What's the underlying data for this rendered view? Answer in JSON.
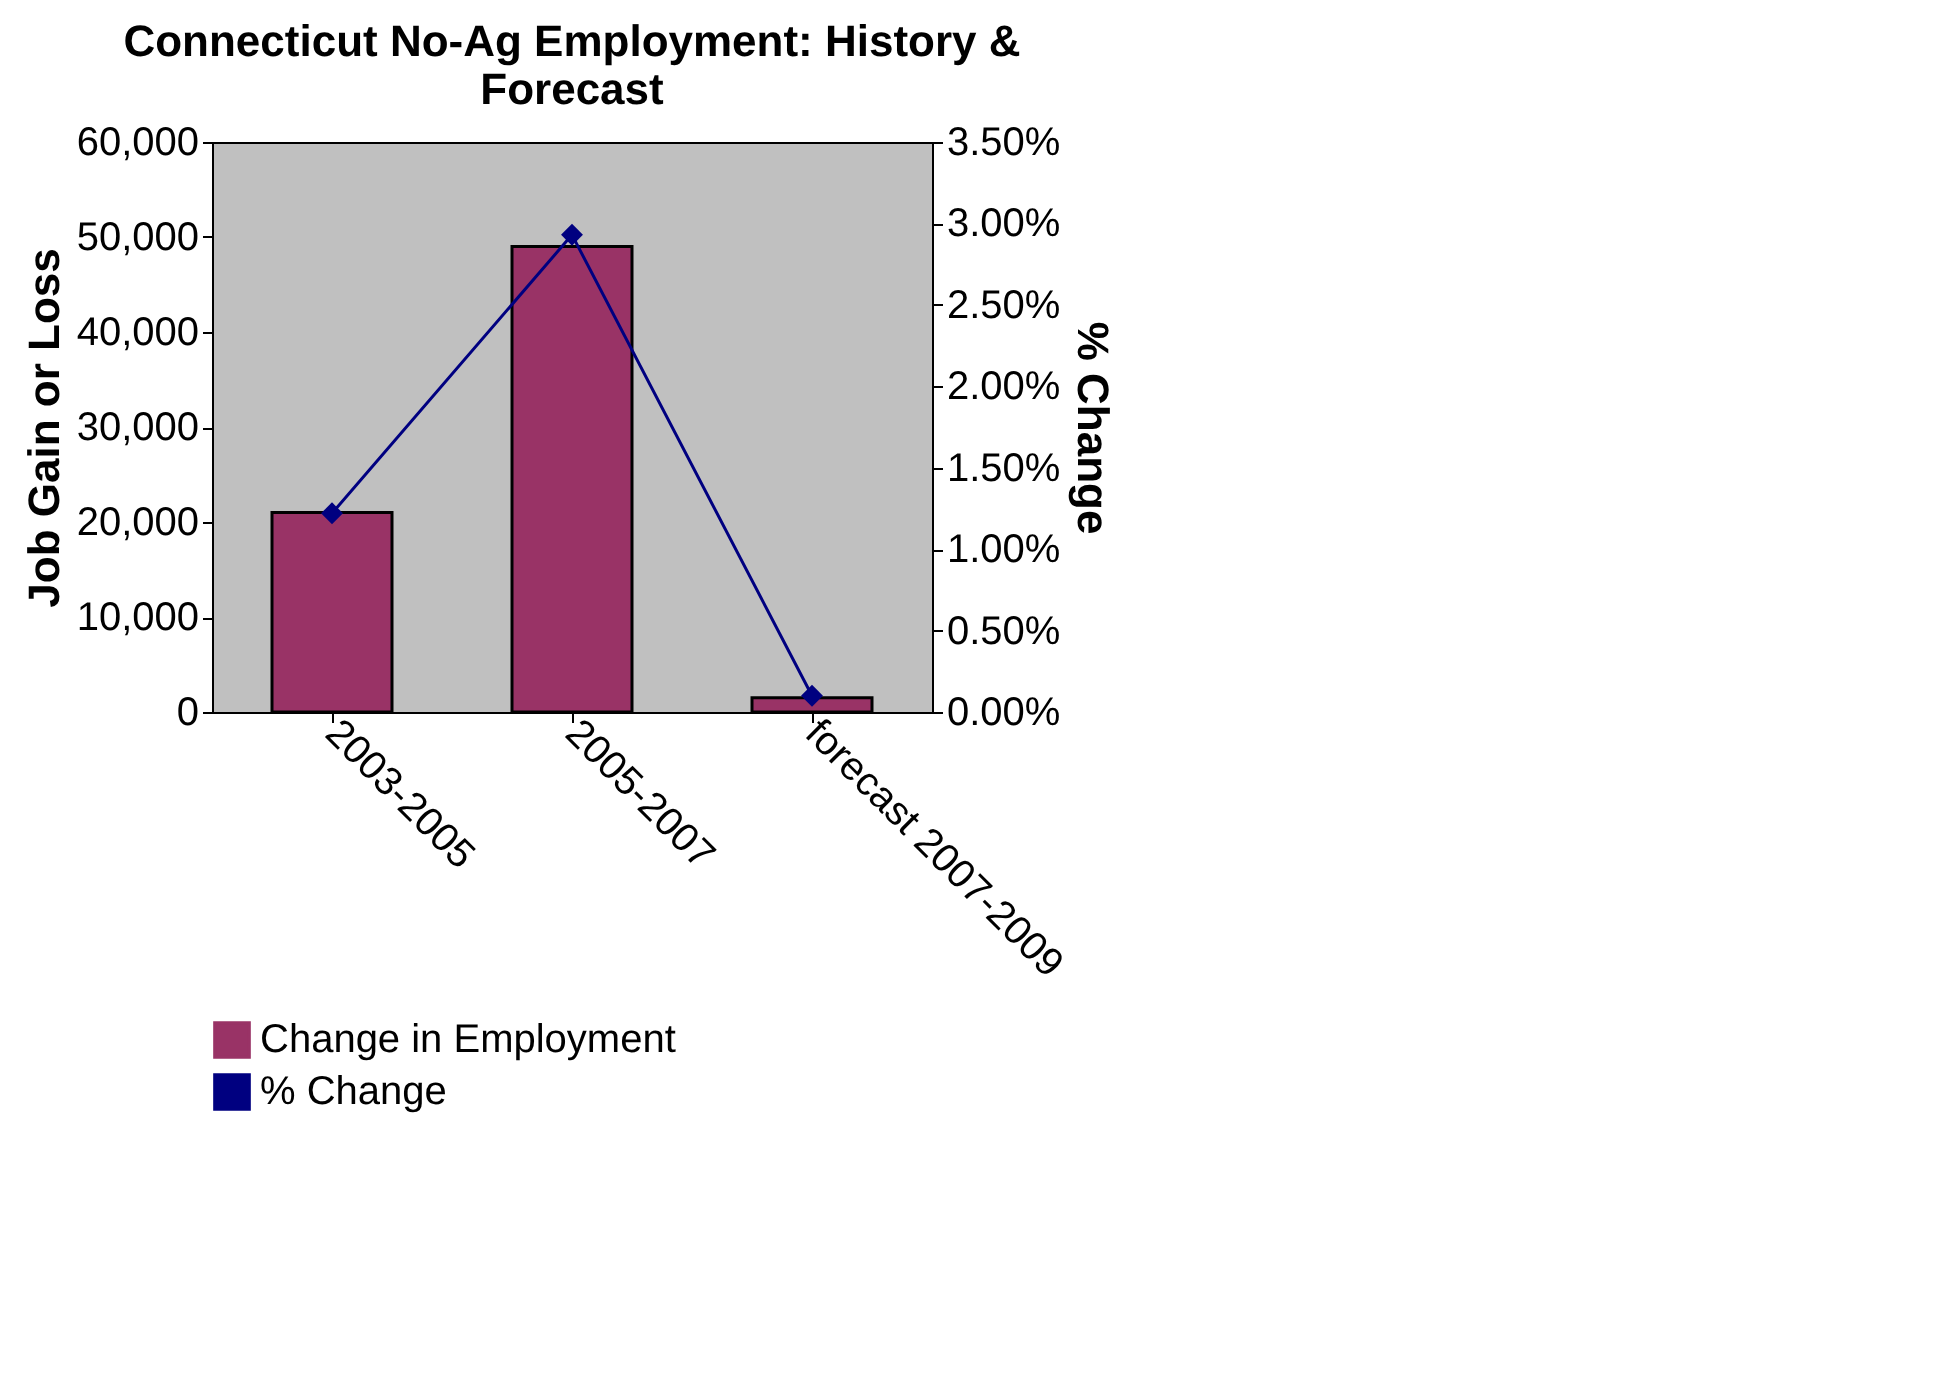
{
  "chart_data": {
    "type": "bar",
    "title": "Connecticut No-Ag Employment: History & Forecast",
    "categories": [
      "2003-2005",
      "2005-2007",
      "forecast 2007-2009"
    ],
    "series": [
      {
        "name": "Change in Employment",
        "color": "#993366",
        "values": [
          21000,
          49000,
          1500
        ]
      },
      {
        "name": "% Change",
        "type": "line",
        "axis": "y2",
        "color": "#000080",
        "marker": "diamond",
        "values": [
          1.22,
          2.93,
          0.1
        ]
      }
    ],
    "ylabel": "Job Gain or Loss",
    "y2label": "% Change",
    "ylim": [
      0,
      60000
    ],
    "yticks": [
      {
        "value": 0,
        "label": "0"
      },
      {
        "value": 10000,
        "label": "10,000"
      },
      {
        "value": 20000,
        "label": "20,000"
      },
      {
        "value": 30000,
        "label": "30,000"
      },
      {
        "value": 40000,
        "label": "40,000"
      },
      {
        "value": 50000,
        "label": "50,000"
      },
      {
        "value": 60000,
        "label": "60,000"
      }
    ],
    "y2lim": [
      0,
      3.5
    ],
    "y2ticks": [
      {
        "value": 0,
        "label": "0.00%"
      },
      {
        "value": 0.5,
        "label": "0.50%"
      },
      {
        "value": 1,
        "label": "1.00%"
      },
      {
        "value": 1.5,
        "label": "1.50%"
      },
      {
        "value": 2,
        "label": "2.00%"
      },
      {
        "value": 2.5,
        "label": "2.50%"
      },
      {
        "value": 3,
        "label": "3.00%"
      },
      {
        "value": 3.5,
        "label": "3.50%"
      }
    ],
    "grid": false,
    "legend": "bottom left"
  }
}
